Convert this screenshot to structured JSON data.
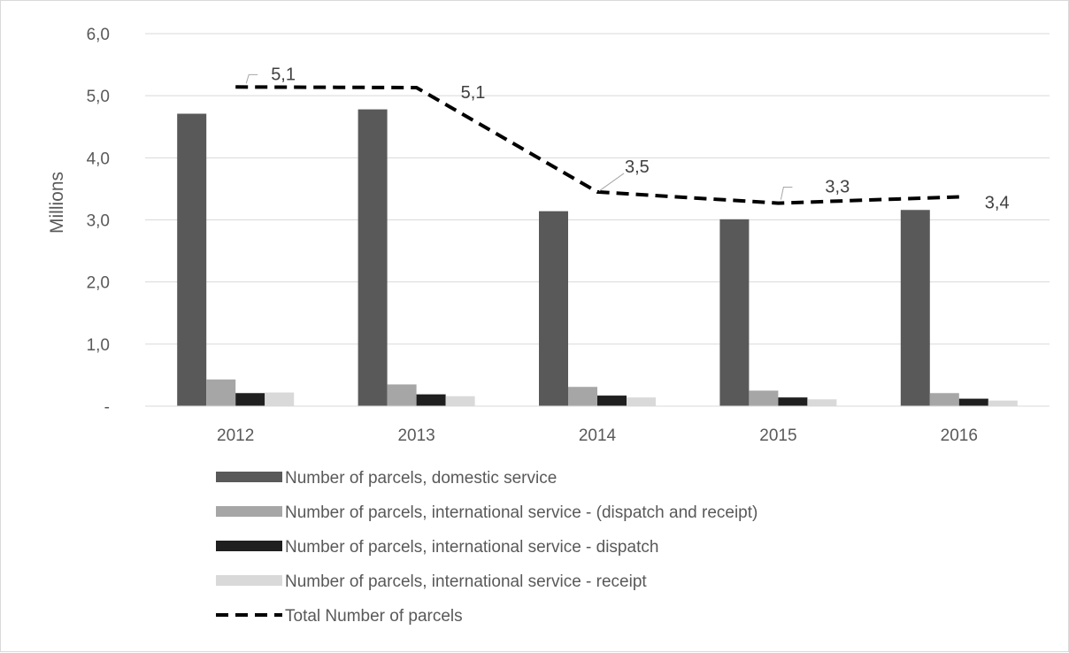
{
  "chart_data": {
    "type": "bar",
    "title": "",
    "xlabel": "",
    "ylabel": "Millions",
    "ylim": [
      0,
      6
    ],
    "yticks": [
      {
        "value": 0,
        "label": "-"
      },
      {
        "value": 1,
        "label": "1,0"
      },
      {
        "value": 2,
        "label": "2,0"
      },
      {
        "value": 3,
        "label": "3,0"
      },
      {
        "value": 4,
        "label": "4,0"
      },
      {
        "value": 5,
        "label": "5,0"
      },
      {
        "value": 6,
        "label": "6,0"
      }
    ],
    "grid": true,
    "legend_position": "bottom",
    "categories": [
      "2012",
      "2013",
      "2014",
      "2015",
      "2016"
    ],
    "series": [
      {
        "name": "Number of parcels, domestic service",
        "kind": "bar",
        "color": "#595959",
        "values": [
          4.71,
          4.78,
          3.14,
          3.01,
          3.16
        ]
      },
      {
        "name": "Number of parcels, international service - (dispatch and receipt)",
        "kind": "bar",
        "color": "#a6a6a6",
        "values": [
          0.43,
          0.35,
          0.31,
          0.25,
          0.21
        ]
      },
      {
        "name": "Number of parcels, international service - dispatch",
        "kind": "bar",
        "color": "#1f1f1f",
        "values": [
          0.21,
          0.19,
          0.17,
          0.14,
          0.12
        ]
      },
      {
        "name": "Number of parcels, international service - receipt",
        "kind": "bar",
        "color": "#d9d9d9",
        "values": [
          0.22,
          0.16,
          0.14,
          0.11,
          0.09
        ]
      },
      {
        "name": "Total Number of parcels",
        "kind": "line",
        "color": "#000000",
        "dashed": true,
        "values": [
          5.14,
          5.13,
          3.45,
          3.27,
          3.37
        ],
        "data_labels": [
          "5,1",
          "5,1",
          "3,5",
          "3,3",
          "3,4"
        ]
      }
    ]
  }
}
